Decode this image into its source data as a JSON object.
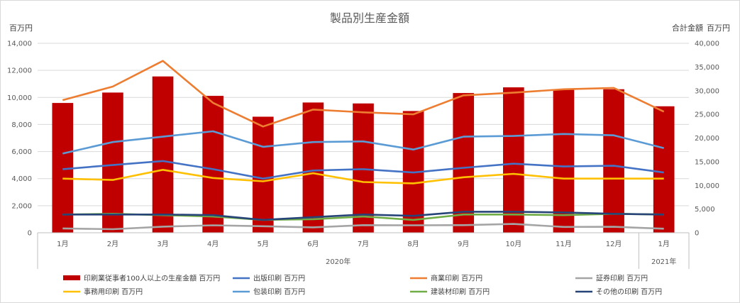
{
  "chart_data": {
    "type": "bar",
    "title": "製品別生産金額",
    "ylabel_left": "百万円",
    "ylabel_right_1": "合計金額",
    "ylabel_right_2": "百万円",
    "categories": [
      "1月",
      "2月",
      "3月",
      "4月",
      "5月",
      "6月",
      "7月",
      "8月",
      "9月",
      "10月",
      "11月",
      "12月",
      "1月"
    ],
    "year_groups": [
      {
        "label": "2020年",
        "start": 0,
        "end": 11
      },
      {
        "label": "2021年",
        "start": 12,
        "end": 12
      }
    ],
    "ylim_left": [
      0,
      14000
    ],
    "ylim_right": [
      0,
      40000
    ],
    "left_ticks": [
      "0",
      "2,000",
      "4,000",
      "6,000",
      "8,000",
      "10,000",
      "12,000",
      "14,000"
    ],
    "right_ticks": [
      "0",
      "5,000",
      "10,000",
      "15,000",
      "20,000",
      "25,000",
      "30,000",
      "35,000",
      "40,000"
    ],
    "grid": true,
    "legend_position": "bottom",
    "bar_series": {
      "name": "印刷業従事者100人以上の生産金額 百万円",
      "color": "#c00000",
      "axis": "right",
      "values": [
        27400,
        29600,
        33000,
        28900,
        24500,
        27500,
        27300,
        25700,
        29500,
        30700,
        30200,
        30300,
        26700
      ]
    },
    "line_series": [
      {
        "name": "出版印刷 百万円",
        "color": "#4472c4",
        "values": [
          4700,
          5000,
          5300,
          4700,
          4000,
          4600,
          4700,
          4450,
          4800,
          5100,
          4900,
          4950,
          4450
        ]
      },
      {
        "name": "商業印刷 百万円",
        "color": "#ed7d31",
        "values": [
          9800,
          10800,
          12700,
          9600,
          7850,
          9100,
          8900,
          8750,
          10150,
          10350,
          10600,
          10700,
          8950
        ]
      },
      {
        "name": "証券印刷 百万円",
        "color": "#a5a5a5",
        "values": [
          320,
          260,
          450,
          550,
          480,
          400,
          560,
          550,
          560,
          650,
          430,
          440,
          300
        ]
      },
      {
        "name": "事務用印刷 百万円",
        "color": "#ffc000",
        "values": [
          4000,
          3900,
          4650,
          4050,
          3800,
          4400,
          3750,
          3650,
          4100,
          4350,
          4000,
          4000,
          4000
        ]
      },
      {
        "name": "包装印刷 百万円",
        "color": "#5b9bd5",
        "values": [
          5850,
          6700,
          7100,
          7500,
          6350,
          6700,
          6750,
          6150,
          7100,
          7150,
          7300,
          7200,
          6250
        ]
      },
      {
        "name": "建装材印刷 百万円",
        "color": "#70ad47",
        "values": [
          1350,
          1400,
          1300,
          1200,
          950,
          1000,
          1200,
          950,
          1350,
          1350,
          1300,
          1400,
          1350
        ]
      },
      {
        "name": "その他の印刷 百万円",
        "color": "#264478",
        "values": [
          1350,
          1350,
          1350,
          1300,
          950,
          1150,
          1350,
          1250,
          1550,
          1550,
          1500,
          1400,
          1350
        ]
      }
    ]
  }
}
